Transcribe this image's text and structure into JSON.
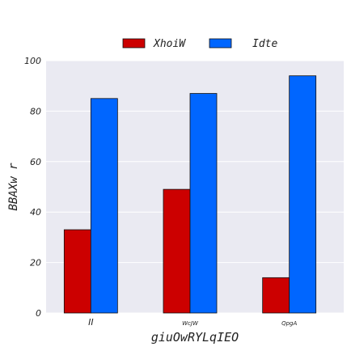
{
  "chart_data": {
    "type": "bar",
    "categories": [
      "II",
      "WcJW",
      "QpgA"
    ],
    "series": [
      {
        "name": "XhoiW",
        "values": [
          33,
          49,
          14
        ],
        "color": "#cc0000"
      },
      {
        "name": "Idte",
        "values": [
          85,
          87,
          94
        ],
        "color": "#0066ff"
      }
    ],
    "title": "",
    "xlabel": "giuOwRYLqIEO",
    "ylabel": "BBAXw r",
    "ylim": [
      0,
      100
    ],
    "yticks": [
      0,
      20,
      40,
      60,
      80,
      100
    ],
    "grid": true,
    "background": "#eaeaf2",
    "legend_position": "top-center"
  }
}
